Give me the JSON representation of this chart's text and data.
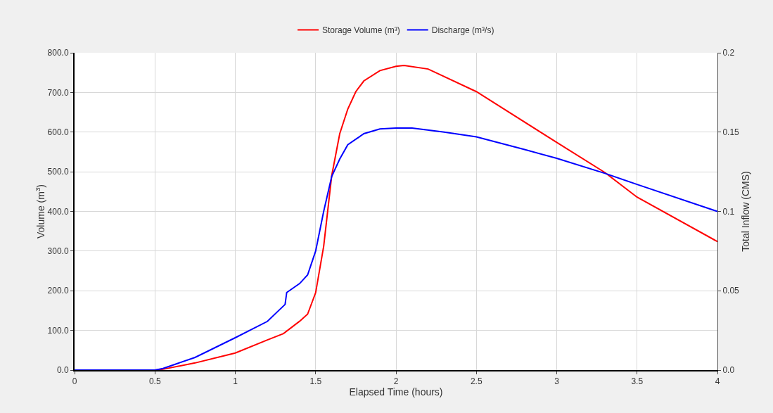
{
  "chart_data": {
    "type": "line",
    "xlabel": "Elapsed Time (hours)",
    "ylabel": "Volume (m$^{3}$)",
    "y2label": "Total Inflow (CMS)",
    "xlim": [
      0,
      4
    ],
    "xticks": [
      0,
      0.5,
      1,
      1.5,
      2,
      2.5,
      3,
      3.5,
      4
    ],
    "ylim": [
      0,
      800
    ],
    "yticks": [
      {
        "value": 0,
        "label": "0.0"
      },
      {
        "value": 100,
        "label": "100.0"
      },
      {
        "value": 200,
        "label": "200.0"
      },
      {
        "value": 300,
        "label": "300.0"
      },
      {
        "value": 400,
        "label": "400.0"
      },
      {
        "value": 500,
        "label": "500.0"
      },
      {
        "value": 600,
        "label": "600.0"
      },
      {
        "value": 700,
        "label": "700.0"
      },
      {
        "value": 800,
        "label": "800.0"
      }
    ],
    "y2lim": [
      0,
      0.2
    ],
    "y2ticks": [
      {
        "value": 0,
        "label": "0.0"
      },
      0.05,
      0.1,
      0.15,
      0.2
    ],
    "grid": true,
    "legend": "top",
    "marker": "none",
    "line_style": "solid",
    "series": [
      {
        "name": "Storage Volume (m³)",
        "color": "#ff0000",
        "x": [
          0,
          0.5,
          0.55,
          0.75,
          1,
          1.2,
          1.3,
          1.4,
          1.45,
          1.5,
          1.55,
          1.6,
          1.65,
          1.7,
          1.75,
          1.8,
          1.9,
          2,
          2.05,
          2.2,
          2.5,
          3,
          3.3,
          3.5,
          4
        ],
        "values": [
          0,
          0,
          2,
          18,
          43,
          76,
          92,
          123,
          141,
          195,
          312,
          490,
          596,
          658,
          702,
          729,
          755,
          766,
          768,
          759,
          702,
          574,
          498,
          436,
          324
        ]
      },
      {
        "name": "Discharge (m³/s)",
        "color": "#0000ff",
        "axis": "y2",
        "x": [
          0,
          0.5,
          0.55,
          0.75,
          1,
          1.2,
          1.31,
          1.32,
          1.4,
          1.45,
          1.5,
          1.55,
          1.6,
          1.65,
          1.7,
          1.8,
          1.9,
          2,
          2.1,
          2.3,
          2.5,
          2.8,
          3,
          3.3,
          3.5,
          4
        ],
        "values": [
          0,
          0,
          0.001,
          0.008,
          0.0204,
          0.0307,
          0.0414,
          0.0489,
          0.0545,
          0.06,
          0.075,
          0.1,
          0.122,
          0.133,
          0.142,
          0.149,
          0.152,
          0.1526,
          0.1526,
          0.15,
          0.147,
          0.139,
          0.1335,
          0.124,
          0.117,
          0.1
        ]
      }
    ]
  }
}
